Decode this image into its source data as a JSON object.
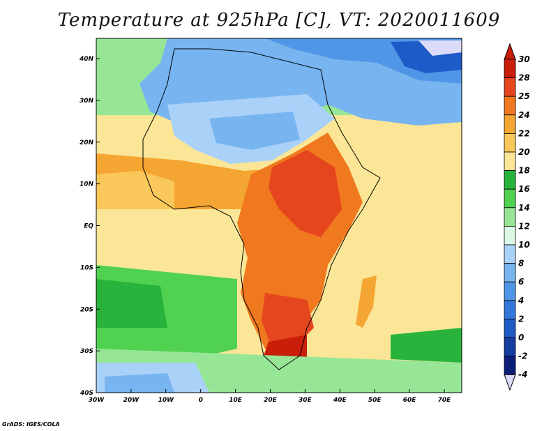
{
  "title": "Temperature at 925hPa [C], VT: 2020011609",
  "credit": "GrADS: IGES/COLA",
  "map": {
    "lat_labels": [
      "40N",
      "30N",
      "20N",
      "10N",
      "EQ",
      "10S",
      "20S",
      "30S",
      "40S"
    ],
    "lon_labels": [
      "30W",
      "20W",
      "10W",
      "0",
      "10E",
      "20E",
      "30E",
      "40E",
      "50E",
      "60E",
      "70E"
    ],
    "lat_range": [
      -40,
      45
    ],
    "lon_range": [
      -30,
      75
    ]
  },
  "colorbar": {
    "levels": [
      "30",
      "28",
      "25",
      "24",
      "22",
      "20",
      "18",
      "16",
      "14",
      "12",
      "10",
      "8",
      "6",
      "4",
      "2",
      "0",
      "-2",
      "-4"
    ],
    "colors": [
      "#c81e0a",
      "#e6461e",
      "#f0781e",
      "#f5a532",
      "#fac85a",
      "#fae696",
      "#28b43c",
      "#50d250",
      "#96e696",
      "#dcf8e6",
      "#aad2f8",
      "#78b4f0",
      "#5096e6",
      "#3278dc",
      "#1e5ac8",
      "#143ca0",
      "#0a1e78",
      "#dcdcfa"
    ]
  }
}
